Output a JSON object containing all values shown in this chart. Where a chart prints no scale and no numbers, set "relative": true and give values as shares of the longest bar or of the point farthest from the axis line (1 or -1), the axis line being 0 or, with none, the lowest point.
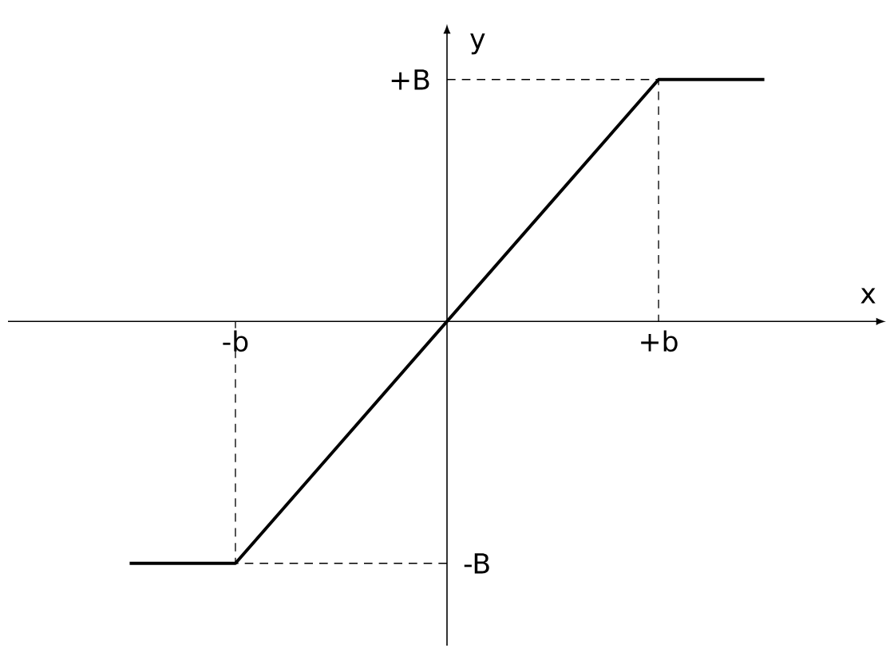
{
  "chart_data": {
    "type": "line",
    "relative": true,
    "xlabel": "x",
    "ylabel": "y",
    "grid": "x",
    "color": "#000000",
    "categories": [
      null,
      "-b",
      null,
      null,
      null,
      "+b",
      null
    ],
    "values": [
      -1,
      -1,
      -0.5,
      0,
      0.5,
      1,
      1
    ],
    "annotations": [
      "+B",
      "-B"
    ]
  }
}
